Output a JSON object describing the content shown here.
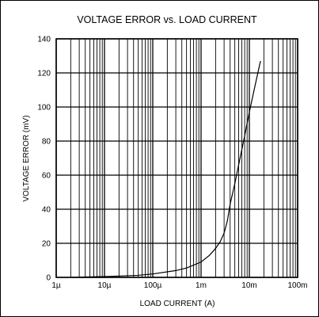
{
  "chart_data": {
    "type": "line",
    "title": "VOLTAGE ERROR vs. LOAD CURRENT",
    "xlabel": "LOAD CURRENT (A)",
    "ylabel": "VOLTAGE ERROR (mV)",
    "xscale": "log",
    "xlim": [
      1e-06,
      0.1
    ],
    "ylim": [
      0,
      140
    ],
    "x_tick_labels": [
      "1µ",
      "10µ",
      "100µ",
      "1m",
      "10m",
      "100m"
    ],
    "x_ticks": [
      1e-06,
      1e-05,
      0.0001,
      0.001,
      0.01,
      0.1
    ],
    "y_ticks": [
      0,
      20,
      40,
      60,
      80,
      100,
      120,
      140
    ],
    "grid": true,
    "legend": "none",
    "series": [
      {
        "x": [
          2e-06,
          1e-05,
          5e-05,
          0.0001,
          0.0003,
          0.0005,
          0.001,
          0.0015,
          0.002,
          0.0025,
          0.003,
          0.0035,
          0.004,
          0.005,
          0.006,
          0.008,
          0.01,
          0.013,
          0.017
        ],
        "y": [
          0,
          0.5,
          1.2,
          2,
          4,
          5.5,
          9,
          13,
          17,
          21,
          26,
          33,
          43,
          55,
          66,
          83,
          97,
          112,
          127
        ],
        "color": "#000000"
      }
    ]
  }
}
